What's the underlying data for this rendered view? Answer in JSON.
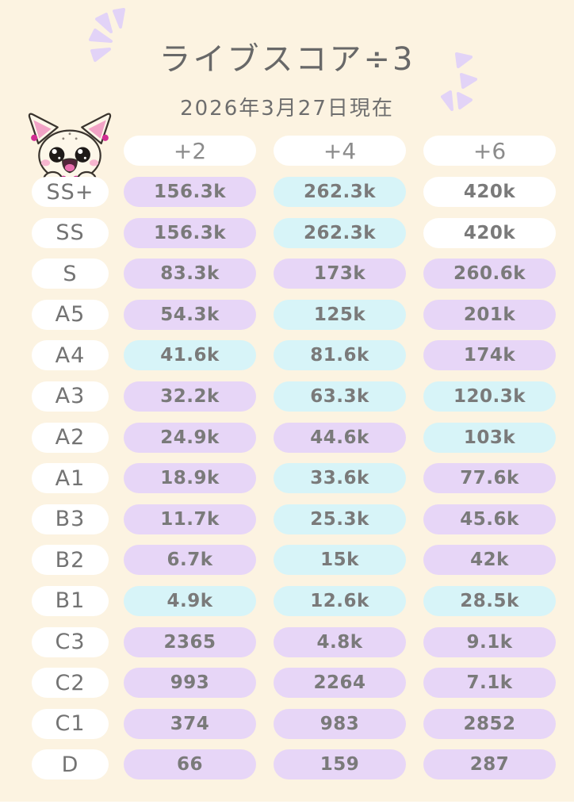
{
  "chart_data": {
    "type": "table",
    "title": "ライブスコア÷3",
    "subtitle": "2026年3月27日現在",
    "columns": [
      "+2",
      "+4",
      "+6"
    ],
    "row_labels": [
      "SS+",
      "SS",
      "S",
      "A5",
      "A4",
      "A3",
      "A2",
      "A1",
      "B3",
      "B2",
      "B1",
      "C3",
      "C2",
      "C1",
      "D"
    ],
    "values": [
      [
        "156.3k",
        "262.3k",
        "420k"
      ],
      [
        "156.3k",
        "262.3k",
        "420k"
      ],
      [
        "83.3k",
        "173k",
        "260.6k"
      ],
      [
        "54.3k",
        "125k",
        "201k"
      ],
      [
        "41.6k",
        "81.6k",
        "174k"
      ],
      [
        "32.2k",
        "63.3k",
        "120.3k"
      ],
      [
        "24.9k",
        "44.6k",
        "103k"
      ],
      [
        "18.9k",
        "33.6k",
        "77.6k"
      ],
      [
        "11.7k",
        "25.3k",
        "45.6k"
      ],
      [
        "6.7k",
        "15k",
        "42k"
      ],
      [
        "4.9k",
        "12.6k",
        "28.5k"
      ],
      [
        "2365",
        "4.8k",
        "9.1k"
      ],
      [
        "993",
        "2264",
        "7.1k"
      ],
      [
        "374",
        "983",
        "2852"
      ],
      [
        "66",
        "159",
        "287"
      ]
    ],
    "layout_hint": "grade rows by score thresholds, pill-style cells"
  },
  "styles": {
    "palette": {
      "background": "#fcf3e1",
      "lavender": "#e7d6f7",
      "cyan": "#d7f4f8",
      "white": "#ffffff",
      "value_text": "#7a7a7a",
      "sparkle": "#e2d3f7"
    },
    "cell_colors": [
      [
        "lavender",
        "cyan",
        "white"
      ],
      [
        "lavender",
        "cyan",
        "white"
      ],
      [
        "lavender",
        "lavender",
        "lavender"
      ],
      [
        "lavender",
        "cyan",
        "lavender"
      ],
      [
        "cyan",
        "cyan",
        "lavender"
      ],
      [
        "lavender",
        "cyan",
        "cyan"
      ],
      [
        "lavender",
        "lavender",
        "cyan"
      ],
      [
        "lavender",
        "cyan",
        "lavender"
      ],
      [
        "lavender",
        "cyan",
        "lavender"
      ],
      [
        "lavender",
        "cyan",
        "lavender"
      ],
      [
        "cyan",
        "cyan",
        "cyan"
      ],
      [
        "lavender",
        "lavender",
        "lavender"
      ],
      [
        "lavender",
        "lavender",
        "lavender"
      ],
      [
        "lavender",
        "lavender",
        "lavender"
      ],
      [
        "lavender",
        "lavender",
        "lavender"
      ]
    ]
  },
  "mascot": {
    "name": "cat-mascot"
  }
}
